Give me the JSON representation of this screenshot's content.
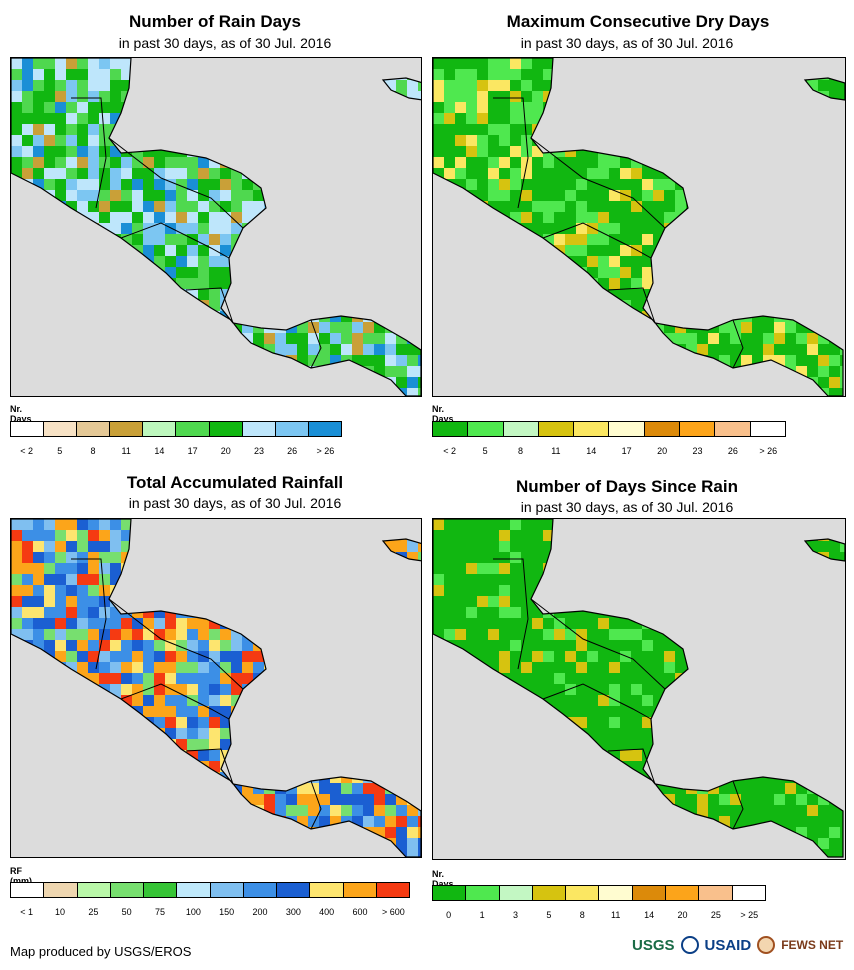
{
  "panels": [
    {
      "id": "rain-days",
      "title": "Number of Rain Days",
      "subtitle": "in past 30 days, as of 30 Jul. 2016",
      "unit": "Nr. Days",
      "legend": {
        "colors": [
          "#ffffff",
          "#f7e2c5",
          "#e4c896",
          "#c9a038",
          "#bdf7bd",
          "#4fd84f",
          "#11b711",
          "#bee6fb",
          "#7cc6f2",
          "#1a8fd6"
        ],
        "labels": [
          "< 2",
          "5",
          "8",
          "11",
          "14",
          "17",
          "20",
          "23",
          "26",
          "> 26"
        ]
      },
      "palette": [
        "#11b711",
        "#4fd84f",
        "#bee6fb",
        "#7cc6f2",
        "#c9a038",
        "#4fd84f",
        "#11b711",
        "#bee6fb",
        "#1a8fd6",
        "#11b711"
      ]
    },
    {
      "id": "max-dry-days",
      "title": "Maximum Consecutive Dry Days",
      "subtitle": "in past 30 days, as of 30 Jul. 2016",
      "unit": "Nr. Days",
      "legend": {
        "colors": [
          "#11b711",
          "#4fe84f",
          "#c3f7c3",
          "#d6c310",
          "#fbe762",
          "#fffcd0",
          "#dc8a0a",
          "#fca41a",
          "#f9c08c",
          "#ffffff"
        ],
        "labels": [
          "< 2",
          "5",
          "8",
          "11",
          "14",
          "17",
          "20",
          "23",
          "26",
          "> 26"
        ]
      },
      "palette": [
        "#11b711",
        "#11b711",
        "#4fe84f",
        "#11b711",
        "#4fe84f",
        "#d6c310",
        "#11b711",
        "#4fe84f",
        "#11b711",
        "#fbe762"
      ]
    },
    {
      "id": "total-rainfall",
      "title": "Total Accumulated Rainfall",
      "subtitle": "in past 30 days, as of 30 Jul. 2016",
      "unit": "RF (mm)",
      "legend": {
        "colors": [
          "#ffffff",
          "#eed6b0",
          "#b9f7a8",
          "#77df6f",
          "#36c436",
          "#bfe9fb",
          "#7fbff0",
          "#3c8fe6",
          "#1b5fd2",
          "#fde56f",
          "#fca51a",
          "#f53a12"
        ],
        "labels": [
          "< 1",
          "10",
          "25",
          "50",
          "75",
          "100",
          "150",
          "200",
          "300",
          "400",
          "600",
          "> 600"
        ]
      },
      "palette": [
        "#3c8fe6",
        "#1b5fd2",
        "#fca51a",
        "#7fbff0",
        "#f53a12",
        "#3c8fe6",
        "#77df6f",
        "#fca51a",
        "#1b5fd2",
        "#fde56f"
      ]
    },
    {
      "id": "days-since-rain",
      "title": "Number of Days Since Rain",
      "subtitle": "in past 30 days, as of 30 Jul. 2016",
      "unit": "Nr. Days",
      "legend": {
        "colors": [
          "#11b711",
          "#4fe84f",
          "#c3f7c3",
          "#d6c310",
          "#fbe762",
          "#fffcd0",
          "#dc8a0a",
          "#fca41a",
          "#f9c08c",
          "#ffffff"
        ],
        "labels": [
          "0",
          "1",
          "3",
          "5",
          "8",
          "11",
          "14",
          "20",
          "25",
          "> 25"
        ]
      },
      "palette": [
        "#11b711",
        "#11b711",
        "#11b711",
        "#11b711",
        "#4fe84f",
        "#11b711",
        "#11b711",
        "#11b711",
        "#11b711",
        "#d6c310"
      ]
    }
  ],
  "credit": "Map produced by USGS/EROS",
  "logos": {
    "usgs": "USGS",
    "usaid": "USAID",
    "fews": "FEWS NET"
  },
  "colors": {
    "ocean": "#dcdcdc",
    "border": "#000000"
  }
}
